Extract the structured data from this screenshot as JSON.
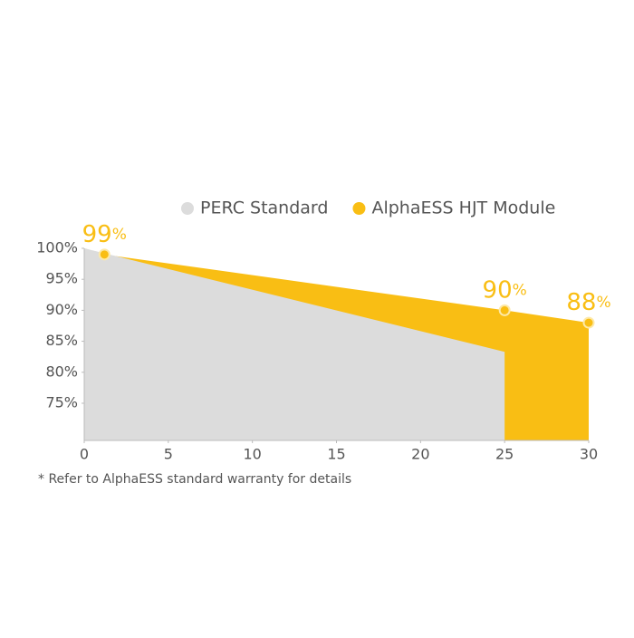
{
  "chart_data": {
    "type": "area",
    "series": [
      {
        "name": "PERC Standard",
        "color": "#dcdcdc",
        "x": [
          0,
          25
        ],
        "values": [
          100,
          83.3
        ]
      },
      {
        "name": "AlphaESS HJT Module",
        "color": "#f9be14",
        "x": [
          0,
          1.2,
          25,
          30
        ],
        "values": [
          100,
          99,
          90,
          88
        ],
        "value_labels": [
          null,
          "99%",
          "90%",
          "88%"
        ]
      }
    ],
    "xlim": [
      0,
      30
    ],
    "xticks": [
      0,
      5,
      10,
      15,
      20,
      25,
      30
    ],
    "ylim": [
      69,
      100
    ],
    "yticks": [
      {
        "value": 75,
        "label": "75%"
      },
      {
        "value": 80,
        "label": "80%"
      },
      {
        "value": 85,
        "label": "85%"
      },
      {
        "value": 90,
        "label": "90%"
      },
      {
        "value": 95,
        "label": "95%"
      },
      {
        "value": 100,
        "label": "100%"
      }
    ],
    "legend": "top-right",
    "footnote": "* Refer to AlphaESS standard warranty for details"
  }
}
